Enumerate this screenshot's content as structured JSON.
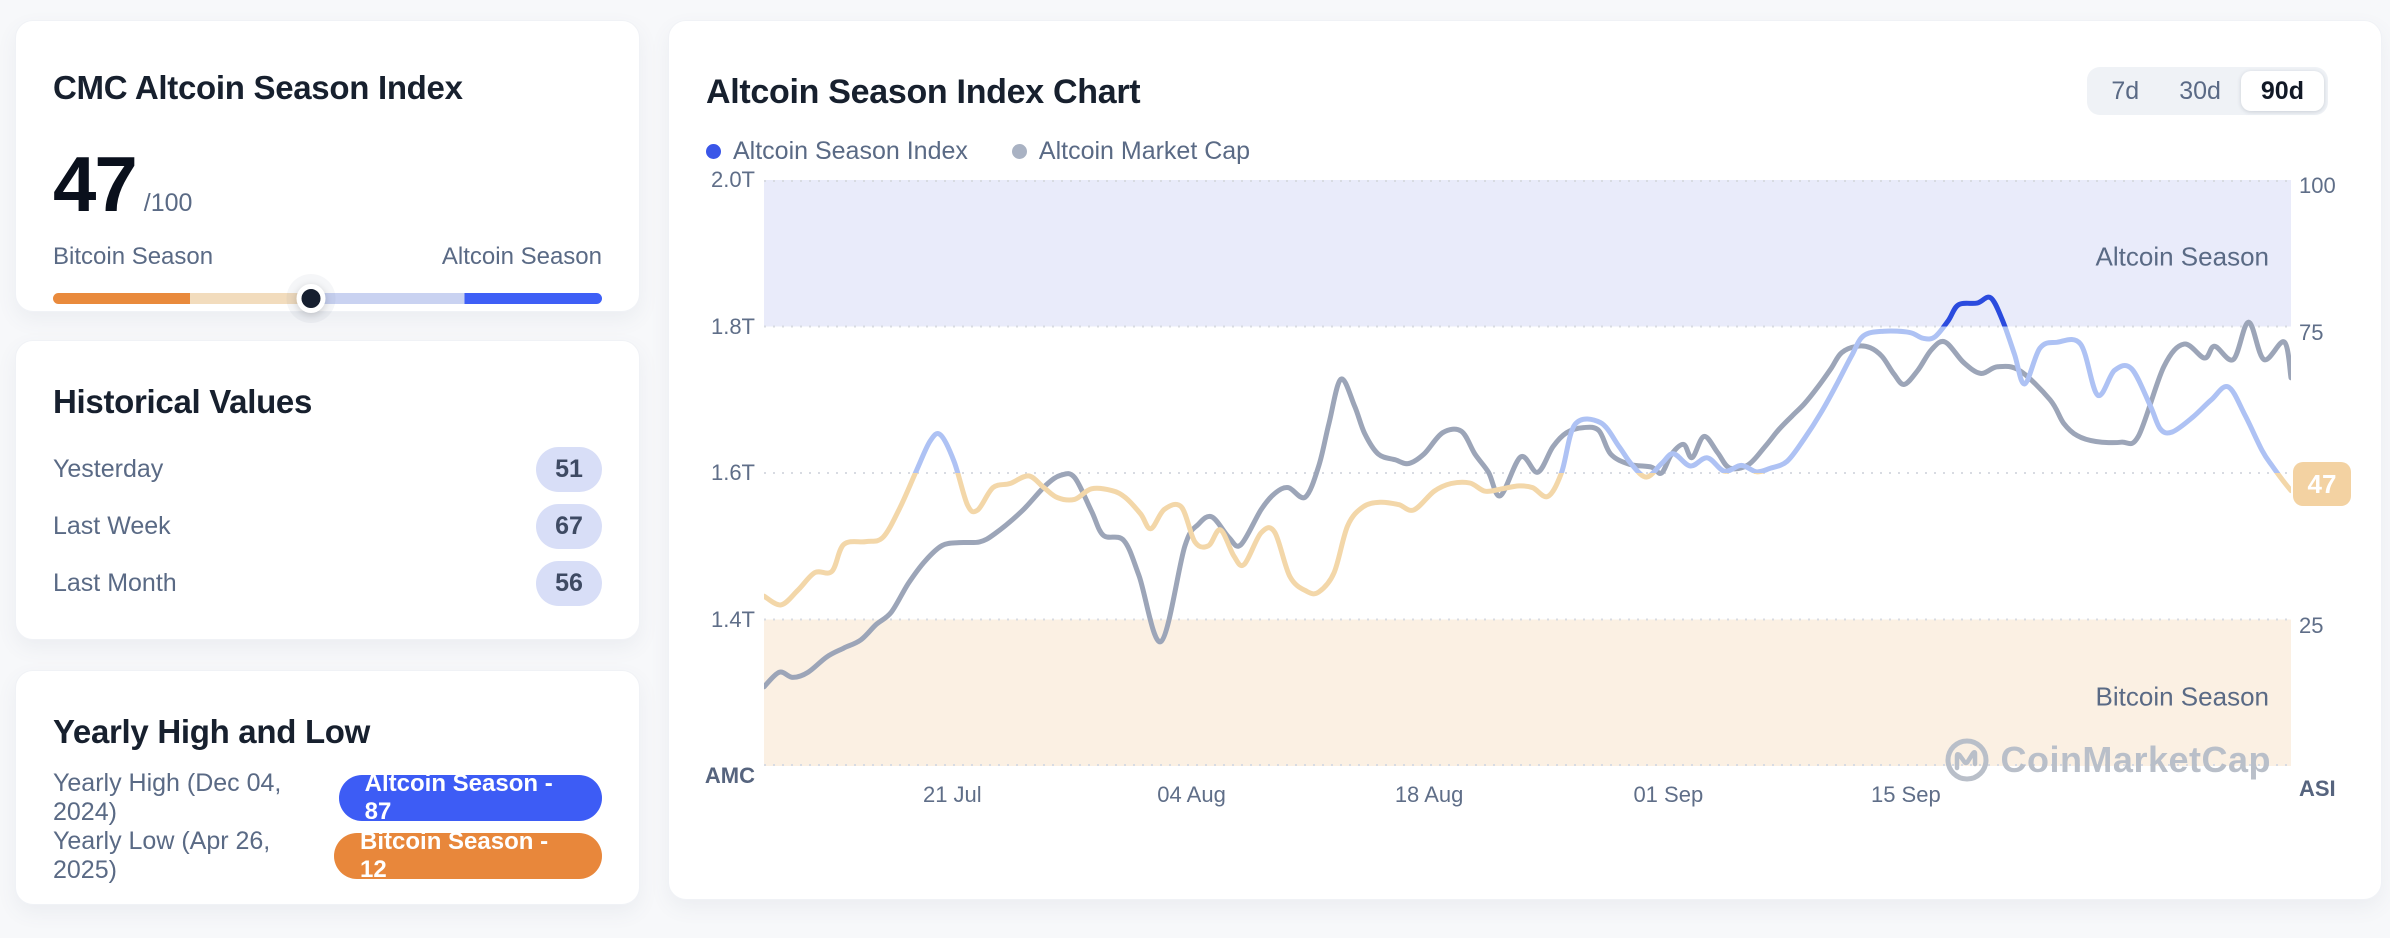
{
  "colors": {
    "accent_blue": "#3d5cf5",
    "accent_orange": "#e8873b",
    "asi_line_low": "#f3d7a9",
    "asi_line_mid": "#aec2f4",
    "asi_line_high": "#2b4bde",
    "amc_line": "#9ca5b8",
    "band_top": "#e9ebfa",
    "band_bottom": "#fbf0e3",
    "legend_index_dot": "#3a56e8",
    "legend_mcap_dot": "#a9b2c3",
    "current_badge_bg": "#f3d2a2"
  },
  "season_card": {
    "title": "CMC Altcoin Season Index",
    "value": "47",
    "denominator": "/100",
    "left_label": "Bitcoin Season",
    "right_label": "Altcoin Season",
    "knob_percent": 47
  },
  "historical_card": {
    "title": "Historical Values",
    "rows": [
      {
        "label": "Yesterday",
        "value": "51"
      },
      {
        "label": "Last Week",
        "value": "67"
      },
      {
        "label": "Last Month",
        "value": "56"
      }
    ]
  },
  "yearly_card": {
    "title": "Yearly High and Low",
    "high": {
      "label": "Yearly High (Dec 04, 2024)",
      "badge": "Altcoin Season - 87"
    },
    "low": {
      "label": "Yearly Low (Apr 26, 2025)",
      "badge": "Bitcoin Season - 12"
    }
  },
  "chart": {
    "title": "Altcoin Season Index Chart",
    "legend": [
      {
        "label": "Altcoin Season Index",
        "color": "#3a56e8"
      },
      {
        "label": "Altcoin Market Cap",
        "color": "#a9b2c3"
      }
    ],
    "ranges": [
      "7d",
      "30d",
      "90d"
    ],
    "active_range": "90d",
    "zone_top_label": "Altcoin Season",
    "zone_bottom_label": "Bitcoin Season",
    "watermark": "CoinMarketCap",
    "left_axis_title": "AMC",
    "right_axis_title": "ASI",
    "current_value": "47"
  },
  "chart_data": {
    "type": "line",
    "title": "Altcoin Season Index Chart",
    "x_unit": "days since 10 Jul",
    "x_range": [
      0,
      90
    ],
    "x_ticks": [
      {
        "label": "21 Jul",
        "day": 11.1
      },
      {
        "label": "04 Aug",
        "day": 25.2
      },
      {
        "label": "18 Aug",
        "day": 39.2
      },
      {
        "label": "01 Sep",
        "day": 53.3
      },
      {
        "label": "15 Sep",
        "day": 67.3
      }
    ],
    "right_axis": {
      "name": "ASI",
      "range": [
        0,
        100
      ],
      "ticks": [
        {
          "label": "100",
          "v": 100
        },
        {
          "label": "75",
          "v": 75
        },
        {
          "label": "25",
          "v": 25
        }
      ]
    },
    "left_axis": {
      "name": "AMC",
      "range_trillions": [
        1.2,
        2.0
      ],
      "ticks": [
        {
          "label": "2.0T",
          "v": 2.0
        },
        {
          "label": "1.8T",
          "v": 1.8
        },
        {
          "label": "1.6T",
          "v": 1.6
        },
        {
          "label": "1.4T",
          "v": 1.4
        }
      ]
    },
    "grid_levels_asi": [
      100,
      75,
      50,
      25,
      0
    ],
    "zones": {
      "altcoin_season_above": 75,
      "bitcoin_season_below": 25
    },
    "series": [
      {
        "name": "Altcoin Season Index",
        "axis": "right",
        "color_rule": "peach below 50, periwinkle 50-75, dark blue above 75",
        "points": [
          [
            0,
            29
          ],
          [
            1,
            27.5
          ],
          [
            2,
            30
          ],
          [
            3,
            33
          ],
          [
            4,
            33.2
          ],
          [
            4.7,
            37.8
          ],
          [
            6,
            38.3
          ],
          [
            7,
            39
          ],
          [
            8,
            44
          ],
          [
            9,
            50.5
          ],
          [
            9.8,
            55.5
          ],
          [
            10.4,
            56.5
          ],
          [
            11.2,
            52
          ],
          [
            12,
            44.5
          ],
          [
            12.6,
            43.7
          ],
          [
            13.5,
            47.5
          ],
          [
            14.5,
            48.2
          ],
          [
            15.6,
            49.5
          ],
          [
            16.5,
            47.5
          ],
          [
            17.3,
            45.8
          ],
          [
            18.3,
            45.5
          ],
          [
            19.3,
            47.3
          ],
          [
            20.5,
            47
          ],
          [
            21.3,
            45.8
          ],
          [
            22.2,
            43
          ],
          [
            22.8,
            40.5
          ],
          [
            23.6,
            43.8
          ],
          [
            24.6,
            44.2
          ],
          [
            25.4,
            38.2
          ],
          [
            26.2,
            37.6
          ],
          [
            26.9,
            40.3
          ],
          [
            27.7,
            35.8
          ],
          [
            28.3,
            34.4
          ],
          [
            29.3,
            39.8
          ],
          [
            30.1,
            39.9
          ],
          [
            31,
            32.3
          ],
          [
            32,
            29.8
          ],
          [
            32.7,
            29.7
          ],
          [
            33.6,
            33
          ],
          [
            34.4,
            41
          ],
          [
            35.3,
            44.2
          ],
          [
            36.3,
            45
          ],
          [
            37.4,
            44.6
          ],
          [
            38.3,
            43.7
          ],
          [
            39.5,
            46.9
          ],
          [
            40.5,
            48.2
          ],
          [
            41.6,
            48.3
          ],
          [
            42.5,
            46.9
          ],
          [
            43.5,
            47.3
          ],
          [
            44.5,
            47.8
          ],
          [
            45.3,
            47.5
          ],
          [
            46.2,
            46
          ],
          [
            47,
            50
          ],
          [
            47.8,
            58.3
          ],
          [
            49.3,
            58.6
          ],
          [
            50.4,
            54.5
          ],
          [
            51.1,
            51.6
          ],
          [
            52,
            49.3
          ],
          [
            52.9,
            51.6
          ],
          [
            53.6,
            53.3
          ],
          [
            54.6,
            51.2
          ],
          [
            55.6,
            52.6
          ],
          [
            56.6,
            50.3
          ],
          [
            57.6,
            51.3
          ],
          [
            58.5,
            50.2
          ],
          [
            59.3,
            50.8
          ],
          [
            60.3,
            52
          ],
          [
            61.3,
            55.8
          ],
          [
            62.3,
            60.3
          ],
          [
            63.2,
            65
          ],
          [
            64.1,
            70
          ],
          [
            64.8,
            73.4
          ],
          [
            66,
            74.2
          ],
          [
            67.5,
            74
          ],
          [
            68.3,
            73
          ],
          [
            69,
            73.2
          ],
          [
            69.8,
            76
          ],
          [
            70.4,
            78.7
          ],
          [
            71.5,
            79
          ],
          [
            72.3,
            79.9
          ],
          [
            73,
            76
          ],
          [
            73.7,
            70.3
          ],
          [
            74.3,
            65.2
          ],
          [
            75.2,
            71.3
          ],
          [
            76.2,
            72.3
          ],
          [
            77.6,
            72
          ],
          [
            78.6,
            63.3
          ],
          [
            79.6,
            67.5
          ],
          [
            80.6,
            67.8
          ],
          [
            81.7,
            61.5
          ],
          [
            82.3,
            57.5
          ],
          [
            83,
            57
          ],
          [
            84.2,
            59.5
          ],
          [
            85.3,
            62.5
          ],
          [
            86.3,
            64.7
          ],
          [
            87.3,
            59.8
          ],
          [
            88.3,
            53.8
          ],
          [
            88.9,
            51.2
          ],
          [
            89.5,
            48.8
          ],
          [
            90,
            47
          ]
        ]
      },
      {
        "name": "Altcoin Market Cap",
        "axis": "left",
        "unit": "trillion USD",
        "points": [
          [
            0,
            1.308
          ],
          [
            0.9,
            1.328
          ],
          [
            1.7,
            1.321
          ],
          [
            2.6,
            1.328
          ],
          [
            3.7,
            1.349
          ],
          [
            4.7,
            1.361
          ],
          [
            5.7,
            1.372
          ],
          [
            6.6,
            1.393
          ],
          [
            7.5,
            1.41
          ],
          [
            8.5,
            1.449
          ],
          [
            9.5,
            1.48
          ],
          [
            10.5,
            1.501
          ],
          [
            11.5,
            1.505
          ],
          [
            12.7,
            1.506
          ],
          [
            13.6,
            1.517
          ],
          [
            15.2,
            1.548
          ],
          [
            16.6,
            1.583
          ],
          [
            17.5,
            1.597
          ],
          [
            18.3,
            1.594
          ],
          [
            19.3,
            1.548
          ],
          [
            20,
            1.515
          ],
          [
            21.2,
            1.508
          ],
          [
            22.1,
            1.46
          ],
          [
            23.4,
            1.37
          ],
          [
            24.8,
            1.5
          ],
          [
            25.6,
            1.53
          ],
          [
            26.4,
            1.54
          ],
          [
            27.4,
            1.512
          ],
          [
            28.1,
            1.502
          ],
          [
            29.3,
            1.55
          ],
          [
            30.1,
            1.572
          ],
          [
            30.9,
            1.58
          ],
          [
            31.9,
            1.567
          ],
          [
            32.7,
            1.61
          ],
          [
            33.3,
            1.668
          ],
          [
            34,
            1.728
          ],
          [
            34.8,
            1.692
          ],
          [
            35.4,
            1.654
          ],
          [
            36.2,
            1.626
          ],
          [
            37.2,
            1.618
          ],
          [
            38,
            1.613
          ],
          [
            38.9,
            1.626
          ],
          [
            40,
            1.655
          ],
          [
            41.1,
            1.657
          ],
          [
            41.9,
            1.626
          ],
          [
            42.7,
            1.601
          ],
          [
            43.4,
            1.569
          ],
          [
            44.6,
            1.622
          ],
          [
            45.6,
            1.601
          ],
          [
            46.5,
            1.636
          ],
          [
            47.3,
            1.655
          ],
          [
            48.3,
            1.662
          ],
          [
            49.2,
            1.658
          ],
          [
            49.9,
            1.626
          ],
          [
            51,
            1.612
          ],
          [
            52.3,
            1.608
          ],
          [
            52.9,
            1.6
          ],
          [
            53.5,
            1.626
          ],
          [
            54.2,
            1.639
          ],
          [
            54.7,
            1.621
          ],
          [
            55.4,
            1.65
          ],
          [
            56.2,
            1.628
          ],
          [
            56.9,
            1.607
          ],
          [
            58,
            1.611
          ],
          [
            59,
            1.636
          ],
          [
            59.8,
            1.659
          ],
          [
            60.6,
            1.678
          ],
          [
            61.3,
            1.694
          ],
          [
            62.1,
            1.717
          ],
          [
            62.9,
            1.743
          ],
          [
            63.5,
            1.764
          ],
          [
            64.4,
            1.773
          ],
          [
            65.2,
            1.771
          ],
          [
            65.9,
            1.759
          ],
          [
            66.6,
            1.735
          ],
          [
            67.2,
            1.721
          ],
          [
            68,
            1.74
          ],
          [
            68.8,
            1.768
          ],
          [
            69.6,
            1.779
          ],
          [
            70.7,
            1.751
          ],
          [
            71.7,
            1.736
          ],
          [
            72.7,
            1.745
          ],
          [
            74,
            1.74
          ],
          [
            75.8,
            1.7
          ],
          [
            76.6,
            1.668
          ],
          [
            77.4,
            1.651
          ],
          [
            78.5,
            1.643
          ],
          [
            80,
            1.642
          ],
          [
            81,
            1.65
          ],
          [
            82.5,
            1.745
          ],
          [
            83.7,
            1.776
          ],
          [
            84.9,
            1.757
          ],
          [
            85.5,
            1.773
          ],
          [
            86.6,
            1.755
          ],
          [
            87.5,
            1.806
          ],
          [
            88.4,
            1.755
          ],
          [
            89.6,
            1.779
          ],
          [
            90,
            1.73
          ]
        ]
      }
    ]
  }
}
